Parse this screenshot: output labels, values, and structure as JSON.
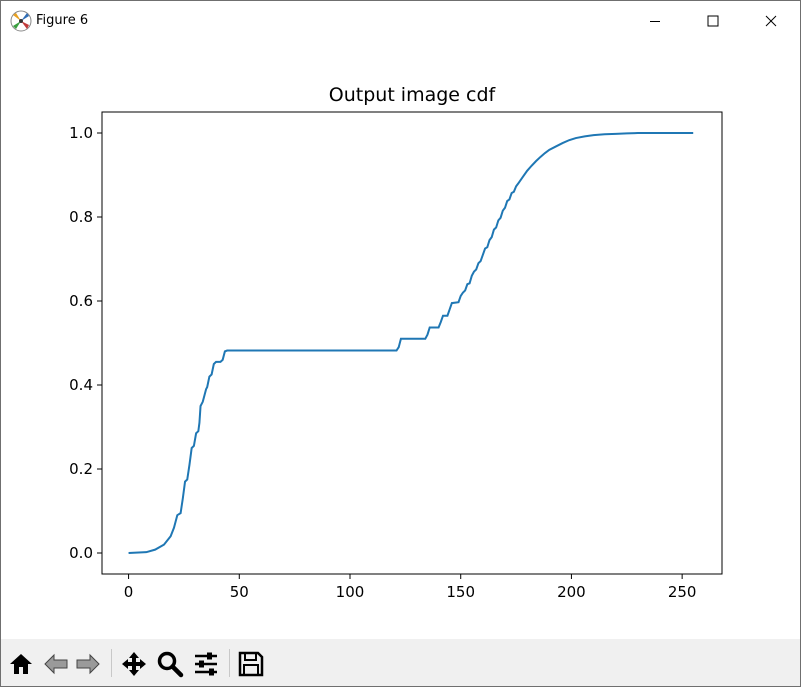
{
  "window": {
    "title": "Figure 6"
  },
  "toolbar": {
    "buttons": [
      {
        "name": "home-icon",
        "tooltip": "Home"
      },
      {
        "name": "back-arrow-icon",
        "tooltip": "Back"
      },
      {
        "name": "forward-arrow-icon",
        "tooltip": "Forward"
      },
      {
        "name": "pan-move-icon",
        "tooltip": "Pan"
      },
      {
        "name": "zoom-magnifier-icon",
        "tooltip": "Zoom"
      },
      {
        "name": "configure-subplots-icon",
        "tooltip": "Subplots"
      },
      {
        "name": "save-floppy-icon",
        "tooltip": "Save"
      }
    ]
  },
  "chart_data": {
    "type": "line",
    "title": "Output image cdf",
    "xlabel": "",
    "ylabel": "",
    "xlim": [
      -12,
      268
    ],
    "ylim": [
      -0.05,
      1.05
    ],
    "xticks": [
      0,
      50,
      100,
      150,
      200,
      250
    ],
    "yticks": [
      0.0,
      0.2,
      0.4,
      0.6,
      0.8,
      1.0
    ],
    "xtick_labels": [
      "0",
      "50",
      "100",
      "150",
      "200",
      "250"
    ],
    "ytick_labels": [
      "0.0",
      "0.2",
      "0.4",
      "0.6",
      "0.8",
      "1.0"
    ],
    "grid": false,
    "line_color": "#1f77b4",
    "series": [
      {
        "x": [
          0,
          8,
          12,
          16,
          19,
          20.5,
          21,
          22,
          23.5,
          24.5,
          25.5,
          26.5,
          27.5,
          28.5,
          29.5,
          30.5,
          31.5,
          32,
          32.5,
          33.5,
          34,
          35,
          35.5,
          36.5,
          37.5,
          38.5,
          39.5,
          40.5,
          41.5,
          42.5,
          43.5,
          44.5,
          121,
          122,
          123,
          134,
          135,
          136,
          140,
          141,
          142,
          144,
          145,
          146,
          149,
          150,
          151,
          152,
          153,
          154,
          155,
          156,
          157,
          158,
          159,
          160,
          161,
          162,
          163,
          164,
          165,
          166,
          167,
          168,
          169,
          170,
          171,
          172,
          173,
          174,
          175,
          176,
          178,
          180,
          182,
          184,
          186,
          188,
          190,
          193,
          196,
          199,
          202,
          206,
          210,
          215,
          220,
          225,
          230,
          235,
          240,
          245,
          250,
          255
        ],
        "y": [
          0.0,
          0.002,
          0.008,
          0.02,
          0.04,
          0.06,
          0.07,
          0.09,
          0.095,
          0.13,
          0.17,
          0.175,
          0.21,
          0.25,
          0.255,
          0.285,
          0.29,
          0.31,
          0.35,
          0.36,
          0.37,
          0.39,
          0.395,
          0.42,
          0.425,
          0.45,
          0.455,
          0.455,
          0.455,
          0.46,
          0.48,
          0.482,
          0.482,
          0.49,
          0.51,
          0.51,
          0.52,
          0.537,
          0.537,
          0.55,
          0.565,
          0.565,
          0.58,
          0.595,
          0.597,
          0.612,
          0.62,
          0.625,
          0.64,
          0.642,
          0.66,
          0.67,
          0.675,
          0.69,
          0.695,
          0.71,
          0.725,
          0.728,
          0.745,
          0.752,
          0.77,
          0.775,
          0.792,
          0.798,
          0.815,
          0.822,
          0.838,
          0.842,
          0.857,
          0.86,
          0.873,
          0.88,
          0.895,
          0.91,
          0.922,
          0.933,
          0.943,
          0.952,
          0.96,
          0.968,
          0.976,
          0.983,
          0.988,
          0.992,
          0.995,
          0.997,
          0.998,
          0.999,
          1.0,
          1.0,
          1.0,
          1.0,
          1.0,
          1.0
        ]
      }
    ]
  }
}
